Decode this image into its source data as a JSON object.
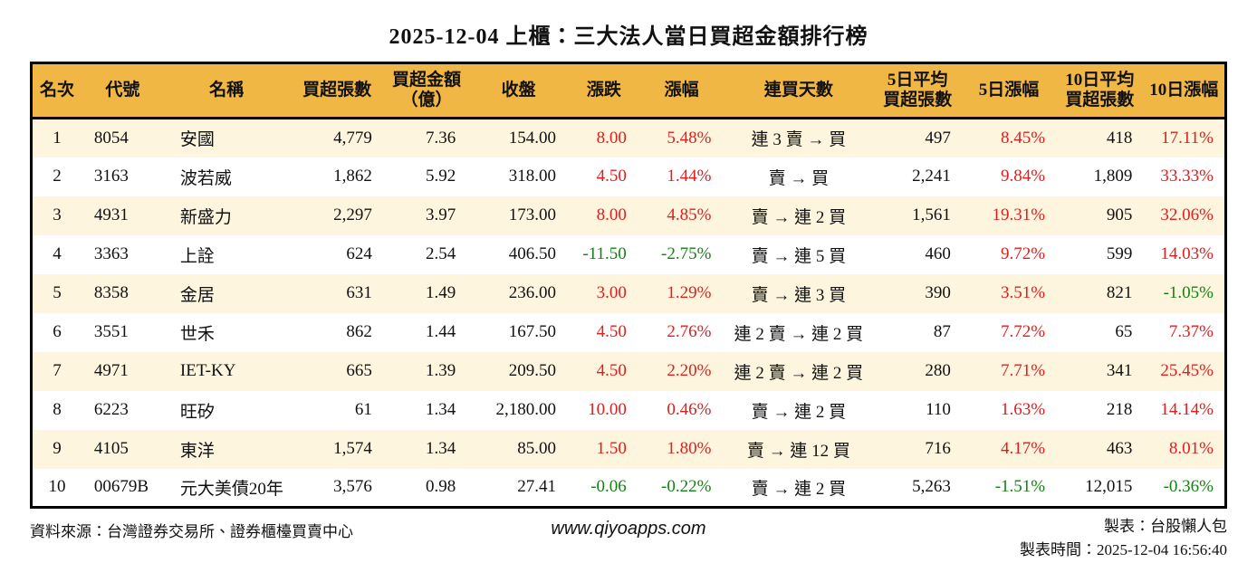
{
  "title": "2025-12-04 上櫃：三大法人當日買超金額排行榜",
  "colors": {
    "header_bg": "#F0B744",
    "row_alt_bg": "#FDF5DE",
    "up_red": "#E01E1E",
    "down_green": "#168016"
  },
  "table": {
    "headers": [
      {
        "line1": "名次"
      },
      {
        "line1": "代號"
      },
      {
        "line1": "名稱"
      },
      {
        "line1": "買超張數"
      },
      {
        "line1": "買超金額",
        "line2": "（億）"
      },
      {
        "line1": "收盤"
      },
      {
        "line1": "漲跌"
      },
      {
        "line1": "漲幅"
      },
      {
        "line1": "連買天數"
      },
      {
        "line1": "5日平均",
        "line2": "買超張數"
      },
      {
        "line1": "5日漲幅"
      },
      {
        "line1": "10日平均",
        "line2": "買超張數"
      },
      {
        "line1": "10日漲幅"
      }
    ],
    "rows": [
      [
        "1",
        "8054",
        "安國",
        "4,779",
        "7.36",
        "154.00",
        {
          "t": "8.00",
          "c": "up"
        },
        {
          "t": "5.48%",
          "c": "up"
        },
        "連 3 賣 → 買",
        "497",
        {
          "t": "8.45%",
          "c": "up"
        },
        "418",
        {
          "t": "17.11%",
          "c": "up"
        }
      ],
      [
        "2",
        "3163",
        "波若威",
        "1,862",
        "5.92",
        "318.00",
        {
          "t": "4.50",
          "c": "up"
        },
        {
          "t": "1.44%",
          "c": "up"
        },
        "賣 → 買",
        "2,241",
        {
          "t": "9.84%",
          "c": "up"
        },
        "1,809",
        {
          "t": "33.33%",
          "c": "up"
        }
      ],
      [
        "3",
        "4931",
        "新盛力",
        "2,297",
        "3.97",
        "173.00",
        {
          "t": "8.00",
          "c": "up"
        },
        {
          "t": "4.85%",
          "c": "up"
        },
        "賣 → 連 2 買",
        "1,561",
        {
          "t": "19.31%",
          "c": "up"
        },
        "905",
        {
          "t": "32.06%",
          "c": "up"
        }
      ],
      [
        "4",
        "3363",
        "上詮",
        "624",
        "2.54",
        "406.50",
        {
          "t": "-11.50",
          "c": "down"
        },
        {
          "t": "-2.75%",
          "c": "down"
        },
        "賣 → 連 5 買",
        "460",
        {
          "t": "9.72%",
          "c": "up"
        },
        "599",
        {
          "t": "14.03%",
          "c": "up"
        }
      ],
      [
        "5",
        "8358",
        "金居",
        "631",
        "1.49",
        "236.00",
        {
          "t": "3.00",
          "c": "up"
        },
        {
          "t": "1.29%",
          "c": "up"
        },
        "賣 → 連 3 買",
        "390",
        {
          "t": "3.51%",
          "c": "up"
        },
        "821",
        {
          "t": "-1.05%",
          "c": "down"
        }
      ],
      [
        "6",
        "3551",
        "世禾",
        "862",
        "1.44",
        "167.50",
        {
          "t": "4.50",
          "c": "up"
        },
        {
          "t": "2.76%",
          "c": "up"
        },
        "連 2 賣 → 連 2 買",
        "87",
        {
          "t": "7.72%",
          "c": "up"
        },
        "65",
        {
          "t": "7.37%",
          "c": "up"
        }
      ],
      [
        "7",
        "4971",
        "IET-KY",
        "665",
        "1.39",
        "209.50",
        {
          "t": "4.50",
          "c": "up"
        },
        {
          "t": "2.20%",
          "c": "up"
        },
        "連 2 賣 → 連 2 買",
        "280",
        {
          "t": "7.71%",
          "c": "up"
        },
        "341",
        {
          "t": "25.45%",
          "c": "up"
        }
      ],
      [
        "8",
        "6223",
        "旺矽",
        "61",
        "1.34",
        "2,180.00",
        {
          "t": "10.00",
          "c": "up"
        },
        {
          "t": "0.46%",
          "c": "up"
        },
        "賣 → 連 2 買",
        "110",
        {
          "t": "1.63%",
          "c": "up"
        },
        "218",
        {
          "t": "14.14%",
          "c": "up"
        }
      ],
      [
        "9",
        "4105",
        "東洋",
        "1,574",
        "1.34",
        "85.00",
        {
          "t": "1.50",
          "c": "up"
        },
        {
          "t": "1.80%",
          "c": "up"
        },
        "賣 → 連 12 買",
        "716",
        {
          "t": "4.17%",
          "c": "up"
        },
        "463",
        {
          "t": "8.01%",
          "c": "up"
        }
      ],
      [
        "10",
        "00679B",
        "元大美債20年",
        "3,576",
        "0.98",
        "27.41",
        {
          "t": "-0.06",
          "c": "down"
        },
        {
          "t": "-0.22%",
          "c": "down"
        },
        "賣 → 連 2 買",
        "5,263",
        {
          "t": "-1.51%",
          "c": "down"
        },
        "12,015",
        {
          "t": "-0.36%",
          "c": "down"
        }
      ]
    ]
  },
  "footer": {
    "source": "資料來源：台灣證券交易所、證券櫃檯買賣中心",
    "website": "www.qiyoapps.com",
    "maker": "製表：台股懶人包",
    "made_time": "製表時間：2025-12-04 16:56:40"
  }
}
